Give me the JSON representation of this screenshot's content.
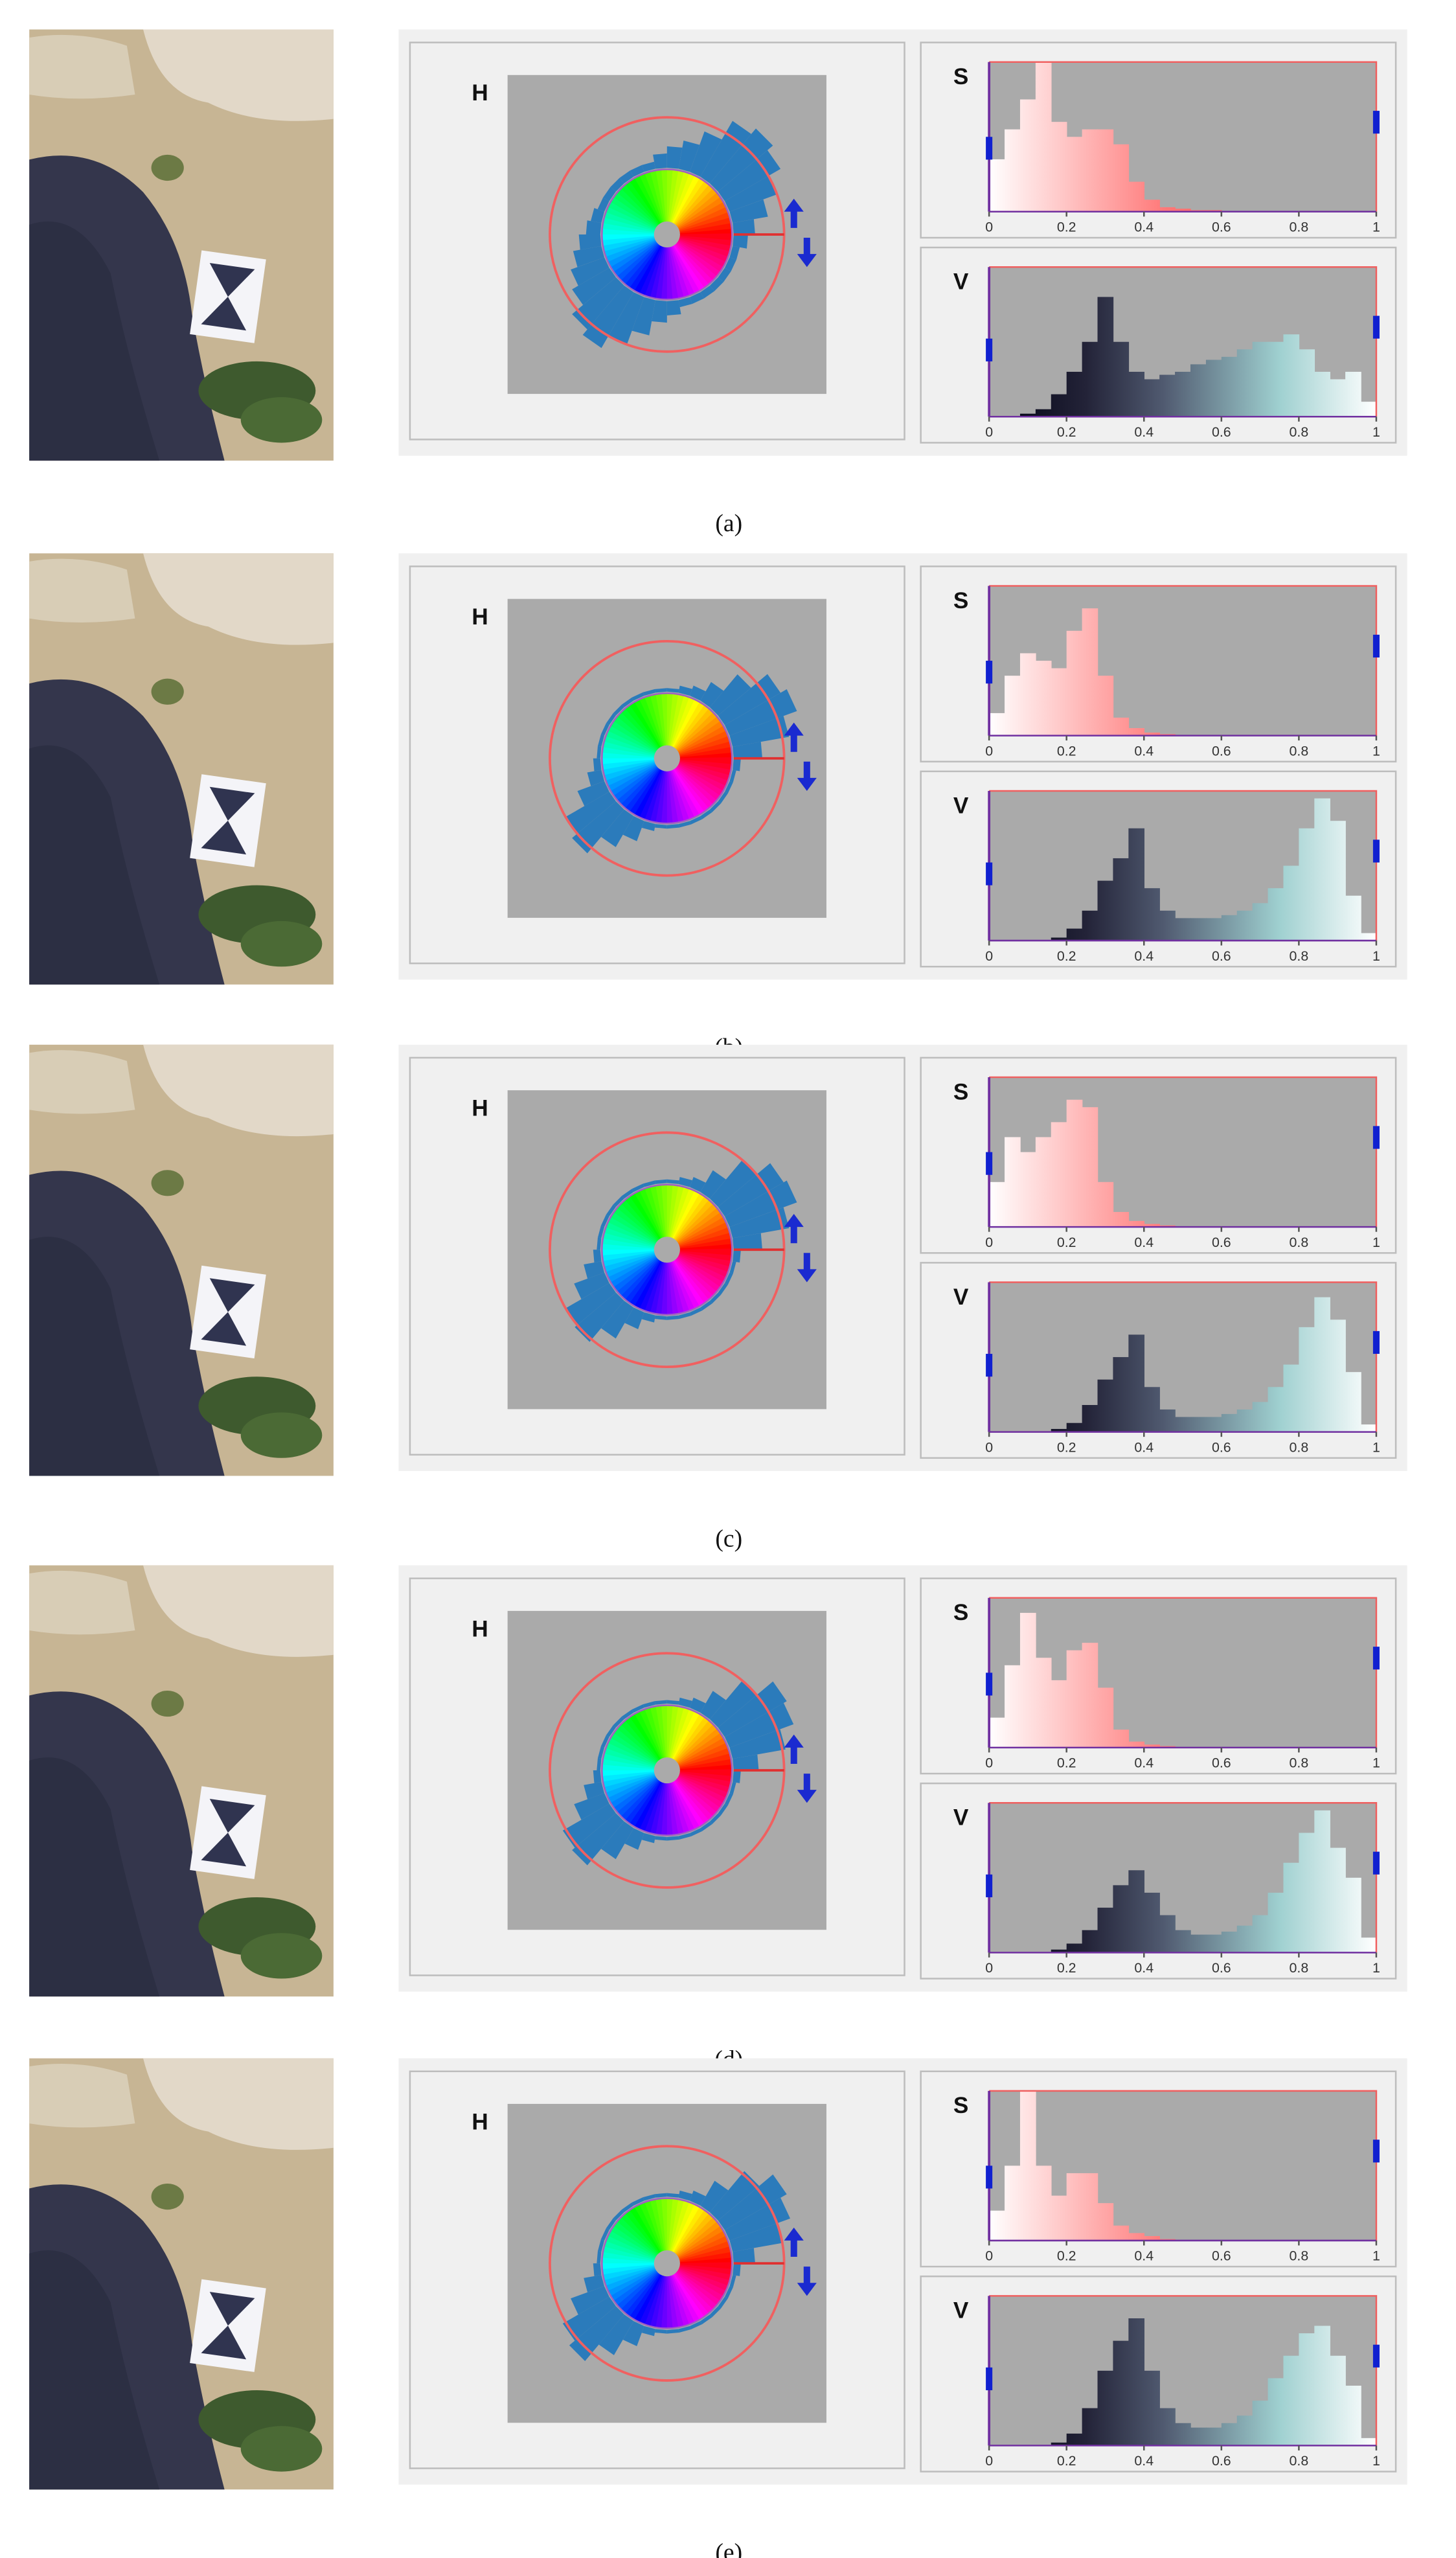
{
  "labels": {
    "h": "H",
    "s": "S",
    "v": "V"
  },
  "ticks": [
    0,
    0.2,
    0.4,
    0.6,
    0.8,
    1
  ],
  "panels": [
    {
      "label": "(a)",
      "hue_hist": [
        0.3,
        0.5,
        0.7,
        0.9,
        1,
        0.9,
        0.6,
        0.4,
        0.3,
        0.2,
        0.1,
        0.1,
        0.1,
        0.1,
        0.1,
        0.1,
        0.15,
        0.2,
        0.3,
        0.4,
        0.5,
        0.6,
        0.8,
        0.9,
        0.7,
        0.5,
        0.3,
        0.2,
        0.1,
        0.1,
        0.1,
        0.1,
        0.1,
        0.1,
        0.1,
        0.2
      ],
      "s_hist": [
        0.35,
        0.55,
        0.75,
        1,
        0.6,
        0.5,
        0.55,
        0.55,
        0.45,
        0.2,
        0.08,
        0.03,
        0.02,
        0.01,
        0.01,
        0,
        0,
        0,
        0,
        0,
        0,
        0,
        0,
        0,
        0
      ],
      "v_hist": [
        0,
        0,
        0.02,
        0.05,
        0.15,
        0.3,
        0.5,
        0.8,
        0.5,
        0.3,
        0.25,
        0.28,
        0.3,
        0.35,
        0.38,
        0.4,
        0.45,
        0.5,
        0.5,
        0.55,
        0.45,
        0.3,
        0.25,
        0.3,
        0.1
      ]
    },
    {
      "label": "(b)",
      "hue_hist": [
        0.4,
        0.8,
        1,
        0.9,
        0.6,
        0.3,
        0.15,
        0.1,
        0.05,
        0.05,
        0.05,
        0.05,
        0.05,
        0.05,
        0.05,
        0.05,
        0.05,
        0.05,
        0.1,
        0.2,
        0.4,
        0.7,
        0.8,
        0.5,
        0.3,
        0.1,
        0.05,
        0.05,
        0.05,
        0.05,
        0.05,
        0.05,
        0.05,
        0.05,
        0.05,
        0.1
      ],
      "s_hist": [
        0.15,
        0.4,
        0.55,
        0.5,
        0.45,
        0.7,
        0.85,
        0.4,
        0.12,
        0.05,
        0.02,
        0.01,
        0,
        0,
        0,
        0,
        0,
        0,
        0,
        0,
        0,
        0,
        0,
        0,
        0
      ],
      "v_hist": [
        0,
        0,
        0,
        0,
        0.02,
        0.08,
        0.2,
        0.4,
        0.55,
        0.75,
        0.35,
        0.2,
        0.15,
        0.15,
        0.15,
        0.17,
        0.2,
        0.25,
        0.35,
        0.5,
        0.75,
        0.95,
        0.8,
        0.3,
        0.05
      ]
    },
    {
      "label": "(c)",
      "hue_hist": [
        0.4,
        0.8,
        1,
        0.95,
        0.7,
        0.35,
        0.15,
        0.1,
        0.05,
        0.05,
        0.05,
        0.05,
        0.05,
        0.05,
        0.05,
        0.05,
        0.05,
        0.05,
        0.1,
        0.25,
        0.45,
        0.7,
        0.75,
        0.5,
        0.25,
        0.1,
        0.05,
        0.05,
        0.05,
        0.05,
        0.05,
        0.05,
        0.05,
        0.05,
        0.05,
        0.1
      ],
      "s_hist": [
        0.3,
        0.6,
        0.5,
        0.6,
        0.7,
        0.85,
        0.8,
        0.3,
        0.1,
        0.04,
        0.02,
        0.01,
        0,
        0,
        0,
        0,
        0,
        0,
        0,
        0,
        0,
        0,
        0,
        0,
        0
      ],
      "v_hist": [
        0,
        0,
        0,
        0,
        0.02,
        0.06,
        0.18,
        0.35,
        0.5,
        0.65,
        0.3,
        0.15,
        0.1,
        0.1,
        0.1,
        0.12,
        0.15,
        0.2,
        0.3,
        0.45,
        0.7,
        0.9,
        0.75,
        0.4,
        0.05
      ]
    },
    {
      "label": "(d)",
      "hue_hist": [
        0.35,
        0.75,
        0.95,
        1,
        0.7,
        0.35,
        0.15,
        0.1,
        0.05,
        0.05,
        0.05,
        0.05,
        0.05,
        0.05,
        0.05,
        0.05,
        0.05,
        0.05,
        0.1,
        0.25,
        0.45,
        0.75,
        0.8,
        0.5,
        0.25,
        0.1,
        0.05,
        0.05,
        0.05,
        0.05,
        0.05,
        0.05,
        0.05,
        0.05,
        0.05,
        0.1
      ],
      "s_hist": [
        0.2,
        0.55,
        0.9,
        0.6,
        0.45,
        0.65,
        0.7,
        0.4,
        0.12,
        0.04,
        0.02,
        0.01,
        0,
        0,
        0,
        0,
        0,
        0,
        0,
        0,
        0,
        0,
        0,
        0,
        0
      ],
      "v_hist": [
        0,
        0,
        0,
        0,
        0.02,
        0.06,
        0.15,
        0.3,
        0.45,
        0.55,
        0.4,
        0.25,
        0.15,
        0.12,
        0.12,
        0.14,
        0.18,
        0.25,
        0.4,
        0.6,
        0.8,
        0.95,
        0.7,
        0.5,
        0.1
      ]
    },
    {
      "label": "(e)",
      "hue_hist": [
        0.3,
        0.7,
        0.9,
        1,
        0.75,
        0.4,
        0.15,
        0.1,
        0.05,
        0.05,
        0.05,
        0.05,
        0.05,
        0.05,
        0.05,
        0.05,
        0.05,
        0.05,
        0.1,
        0.25,
        0.5,
        0.75,
        0.85,
        0.55,
        0.3,
        0.1,
        0.05,
        0.05,
        0.05,
        0.05,
        0.05,
        0.05,
        0.05,
        0.05,
        0.05,
        0.1
      ],
      "s_hist": [
        0.2,
        0.5,
        1,
        0.5,
        0.3,
        0.45,
        0.45,
        0.25,
        0.1,
        0.05,
        0.03,
        0.01,
        0,
        0,
        0,
        0,
        0,
        0,
        0,
        0,
        0,
        0,
        0,
        0,
        0
      ],
      "v_hist": [
        0,
        0,
        0,
        0,
        0.02,
        0.08,
        0.25,
        0.5,
        0.7,
        0.85,
        0.5,
        0.25,
        0.15,
        0.12,
        0.12,
        0.15,
        0.2,
        0.3,
        0.45,
        0.6,
        0.75,
        0.8,
        0.6,
        0.4,
        0.05
      ]
    }
  ]
}
